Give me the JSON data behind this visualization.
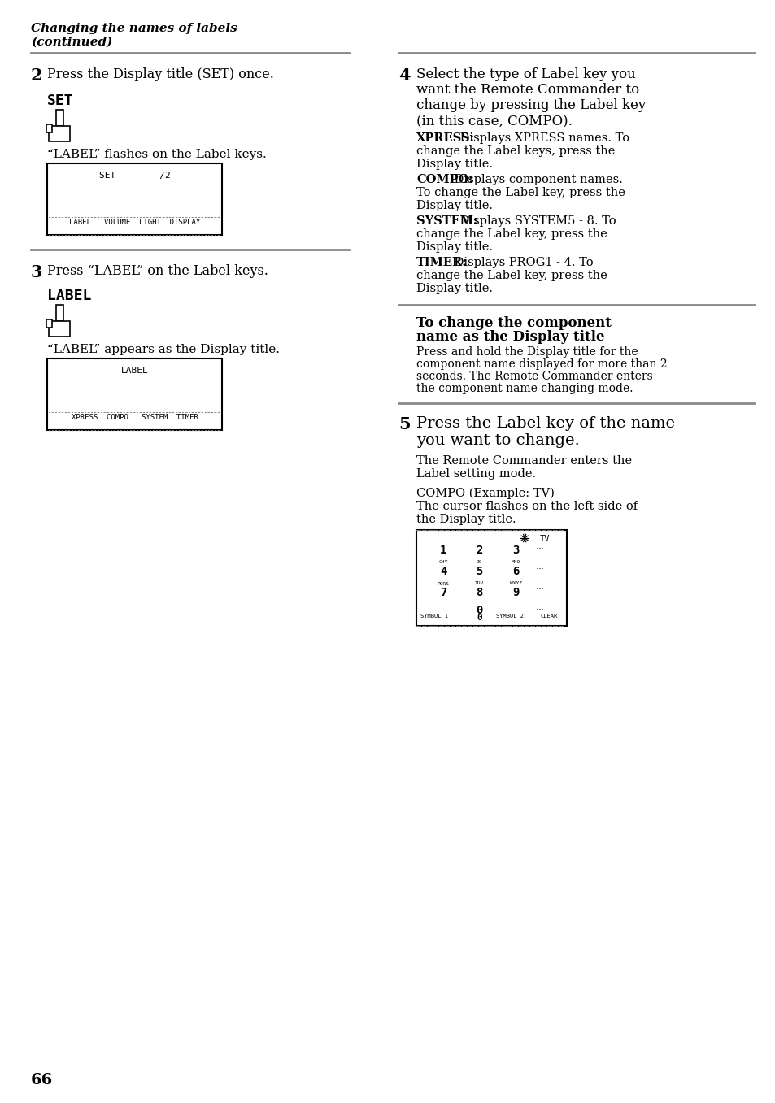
{
  "page_number": "66",
  "bg_color": "#ffffff",
  "text_color": "#000000",
  "divider_color": "#999999",
  "step2_text": "Press the Display title (SET) once.",
  "step2_label_word": "SET",
  "step2_note": "“LABEL” flashes on the Label keys.",
  "step2_display_title": "SET        /2",
  "step2_display_keys": "LABEL   VOLUME  LIGHT  DISPLAY",
  "step3_text": "Press “LABEL” on the Label keys.",
  "step3_label_word": "LABEL",
  "step3_note": "“LABEL” appears as the Display title.",
  "step3_display_title": "LABEL",
  "step3_display_keys": "XPRESS  COMPO   SYSTEM  TIMER",
  "step4_lines": [
    "Select the type of Label key you",
    "want the Remote Commander to",
    "change by pressing the Label key",
    "(in this case, COMPO)."
  ],
  "step4_subs": [
    [
      "XPRESS:",
      " Displays XPRESS names. To",
      "change the Label keys, press the",
      "Display title."
    ],
    [
      "COMPO:",
      " Displays component names.",
      "To change the Label key, press the",
      "Display title."
    ],
    [
      "SYSTEM:",
      " Displays SYSTEM5 - 8. To",
      "change the Label key, press the",
      "Display title."
    ],
    [
      "TIMER:",
      " Displays PROG1 - 4. To",
      "change the Label key, press the",
      "Display title."
    ]
  ],
  "sidebar_title1": "To change the component",
  "sidebar_title2": "name as the Display title",
  "sidebar_body": [
    "Press and hold the Display title for the",
    "component name displayed for more than 2",
    "seconds. The Remote Commander enters",
    "the component name changing mode."
  ],
  "step5_text1": "Press the Label key of the name",
  "step5_text2": "you want to change.",
  "step5_note1a": "The Remote Commander enters the",
  "step5_note1b": "Label setting mode.",
  "step5_note2a": "COMPO (Example: TV)",
  "step5_note2b": "The cursor flashes on the left side of",
  "step5_note2c": "the Display title."
}
